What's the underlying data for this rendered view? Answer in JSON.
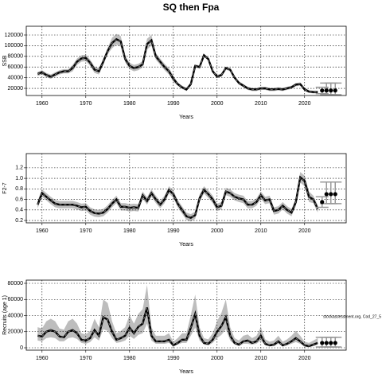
{
  "title": "SQ then Fpa",
  "chart_data": [
    {
      "type": "line",
      "xlabel": "Years",
      "ylabel": "SSB",
      "xlim": [
        1956.4,
        2029.5
      ],
      "xticks": [
        1960,
        1970,
        1980,
        1990,
        2000,
        2010,
        2020
      ],
      "ylim": [
        6600,
        136400
      ],
      "yticks": [
        20000,
        40000,
        60000,
        80000,
        100000,
        120000
      ],
      "grid": true,
      "color": "#000000",
      "band_color": "#bdbdbd",
      "x": [
        1959,
        1960,
        1961,
        1962,
        1963,
        1964,
        1965,
        1966,
        1967,
        1968,
        1969,
        1970,
        1971,
        1972,
        1973,
        1974,
        1975,
        1976,
        1977,
        1978,
        1979,
        1980,
        1981,
        1982,
        1983,
        1984,
        1985,
        1986,
        1987,
        1988,
        1989,
        1990,
        1991,
        1992,
        1993,
        1994,
        1995,
        1996,
        1997,
        1998,
        1999,
        2000,
        2001,
        2002,
        2003,
        2004,
        2005,
        2006,
        2007,
        2008,
        2009,
        2010,
        2011,
        2012,
        2013,
        2014,
        2015,
        2016,
        2017,
        2018,
        2019,
        2020,
        2021,
        2022,
        2023
      ],
      "values": [
        47000,
        50000,
        45000,
        42000,
        46000,
        50000,
        52000,
        52000,
        58000,
        70000,
        76000,
        77000,
        68000,
        55000,
        52000,
        70000,
        90000,
        105000,
        112000,
        108000,
        75000,
        62000,
        58000,
        60000,
        65000,
        103000,
        110000,
        80000,
        70000,
        60000,
        52000,
        38000,
        28000,
        22000,
        18000,
        28000,
        62000,
        60000,
        82000,
        75000,
        52000,
        42000,
        45000,
        58000,
        55000,
        40000,
        30000,
        25000,
        20000,
        18000,
        18000,
        20000,
        20000,
        18000,
        18000,
        19000,
        18000,
        20000,
        22000,
        27000,
        28000,
        18000,
        14000,
        13000,
        13000
      ],
      "low": [
        43000,
        46000,
        41000,
        38000,
        42000,
        46000,
        48000,
        48000,
        52000,
        64000,
        70000,
        71000,
        62000,
        49000,
        46000,
        64000,
        84000,
        95000,
        102000,
        98000,
        69000,
        56000,
        52000,
        54000,
        59000,
        93000,
        100000,
        74000,
        64000,
        54000,
        46000,
        32000,
        25000,
        19000,
        15000,
        25000,
        59000,
        57000,
        79000,
        72000,
        49000,
        39000,
        42000,
        55000,
        52000,
        37000,
        27000,
        22000,
        17000,
        15000,
        15000,
        17000,
        17000,
        15000,
        15000,
        16000,
        15000,
        17000,
        19000,
        24000,
        25000,
        15000,
        11500,
        10500,
        10500
      ],
      "high": [
        51000,
        54000,
        49000,
        46000,
        50000,
        54000,
        56000,
        56000,
        64000,
        76000,
        82000,
        83000,
        74000,
        61000,
        58000,
        76000,
        96000,
        115000,
        122000,
        118000,
        81000,
        68000,
        64000,
        66000,
        71000,
        113000,
        120000,
        86000,
        76000,
        66000,
        58000,
        44000,
        31000,
        25000,
        21000,
        31000,
        65000,
        63000,
        85000,
        78000,
        55000,
        45000,
        48000,
        61000,
        58000,
        43000,
        33000,
        28000,
        23000,
        21000,
        21000,
        23000,
        23000,
        21000,
        21000,
        22000,
        21000,
        23000,
        25000,
        30000,
        31000,
        21000,
        16500,
        15500,
        15500
      ],
      "forecast": {
        "x": [
          2024,
          2025,
          2026,
          2027
        ],
        "values": [
          16000,
          16000,
          16000,
          16000
        ],
        "low": [
          10000,
          8000,
          8000,
          8000
        ],
        "high": [
          22000,
          30000,
          30000,
          30000
        ]
      }
    },
    {
      "type": "line",
      "xlabel": "Years",
      "ylabel": "F2-7",
      "xlim": [
        1956.4,
        2029.5
      ],
      "xticks": [
        1960,
        1970,
        1980,
        1990,
        2000,
        2010,
        2020
      ],
      "ylim": [
        0.155,
        1.47
      ],
      "yticks": [
        0.2,
        0.4,
        0.6,
        0.8,
        {
          "value": 1,
          "label": "1.0"
        },
        1.2
      ],
      "grid": true,
      "color": "#000000",
      "band_color": "#bdbdbd",
      "x": [
        1959,
        1960,
        1961,
        1962,
        1963,
        1964,
        1965,
        1966,
        1967,
        1968,
        1969,
        1970,
        1971,
        1972,
        1973,
        1974,
        1975,
        1976,
        1977,
        1978,
        1979,
        1980,
        1981,
        1982,
        1983,
        1984,
        1985,
        1986,
        1987,
        1988,
        1989,
        1990,
        1991,
        1992,
        1993,
        1994,
        1995,
        1996,
        1997,
        1998,
        1999,
        2000,
        2001,
        2002,
        2003,
        2004,
        2005,
        2006,
        2007,
        2008,
        2009,
        2010,
        2011,
        2012,
        2013,
        2014,
        2015,
        2016,
        2017,
        2018,
        2019,
        2020,
        2021,
        2022,
        2023
      ],
      "values": [
        0.5,
        0.72,
        0.65,
        0.58,
        0.52,
        0.5,
        0.5,
        0.5,
        0.5,
        0.48,
        0.45,
        0.46,
        0.38,
        0.34,
        0.33,
        0.35,
        0.42,
        0.52,
        0.6,
        0.46,
        0.46,
        0.44,
        0.45,
        0.44,
        0.68,
        0.57,
        0.72,
        0.6,
        0.5,
        0.6,
        0.78,
        0.7,
        0.52,
        0.4,
        0.28,
        0.25,
        0.3,
        0.62,
        0.78,
        0.7,
        0.6,
        0.45,
        0.48,
        0.75,
        0.72,
        0.65,
        0.62,
        0.6,
        0.5,
        0.5,
        0.55,
        0.68,
        0.58,
        0.6,
        0.38,
        0.4,
        0.48,
        0.4,
        0.35,
        0.55,
        1.02,
        0.95,
        0.65,
        0.6,
        0.42
      ],
      "low": [
        0.43,
        0.65,
        0.58,
        0.51,
        0.45,
        0.43,
        0.43,
        0.43,
        0.43,
        0.41,
        0.38,
        0.39,
        0.31,
        0.27,
        0.26,
        0.28,
        0.35,
        0.45,
        0.53,
        0.39,
        0.39,
        0.37,
        0.38,
        0.37,
        0.61,
        0.5,
        0.65,
        0.53,
        0.43,
        0.53,
        0.71,
        0.63,
        0.45,
        0.33,
        0.21,
        0.18,
        0.23,
        0.55,
        0.71,
        0.63,
        0.53,
        0.38,
        0.41,
        0.68,
        0.65,
        0.58,
        0.55,
        0.53,
        0.43,
        0.43,
        0.48,
        0.61,
        0.51,
        0.53,
        0.31,
        0.33,
        0.41,
        0.33,
        0.28,
        0.48,
        0.92,
        0.85,
        0.55,
        0.53,
        0.35
      ],
      "high": [
        0.57,
        0.79,
        0.72,
        0.65,
        0.59,
        0.57,
        0.57,
        0.57,
        0.57,
        0.55,
        0.52,
        0.53,
        0.45,
        0.41,
        0.4,
        0.42,
        0.49,
        0.59,
        0.67,
        0.53,
        0.53,
        0.51,
        0.52,
        0.51,
        0.75,
        0.64,
        0.79,
        0.67,
        0.57,
        0.67,
        0.85,
        0.77,
        0.59,
        0.47,
        0.35,
        0.32,
        0.37,
        0.69,
        0.85,
        0.77,
        0.67,
        0.52,
        0.55,
        0.82,
        0.79,
        0.72,
        0.69,
        0.67,
        0.57,
        0.57,
        0.62,
        0.75,
        0.65,
        0.67,
        0.45,
        0.47,
        0.55,
        0.47,
        0.42,
        0.62,
        1.12,
        1.05,
        0.75,
        0.67,
        0.49
      ],
      "forecast": {
        "x": [
          2024,
          2025,
          2026,
          2027
        ],
        "values": [
          0.55,
          0.7,
          0.7,
          0.7
        ],
        "low": [
          0.45,
          0.52,
          0.52,
          0.52
        ],
        "high": [
          0.65,
          0.93,
          0.93,
          0.93
        ]
      }
    },
    {
      "type": "line",
      "xlabel": "Years",
      "ylabel": "Recruits (age 1)",
      "annotation": "stockassessment.org, Cod_27_5",
      "xlim": [
        1956.4,
        2029.5
      ],
      "xticks": [
        1960,
        1970,
        1980,
        1990,
        2000,
        2010,
        2020
      ],
      "ylim": [
        -2960,
        83950
      ],
      "yticks": [
        0,
        20000,
        40000,
        60000,
        80000
      ],
      "grid": true,
      "color": "#000000",
      "band_color": "#bdbdbd",
      "x": [
        1959,
        1960,
        1961,
        1962,
        1963,
        1964,
        1965,
        1966,
        1967,
        1968,
        1969,
        1970,
        1971,
        1972,
        1973,
        1974,
        1975,
        1976,
        1977,
        1978,
        1979,
        1980,
        1981,
        1982,
        1983,
        1984,
        1985,
        1986,
        1987,
        1988,
        1989,
        1990,
        1991,
        1992,
        1993,
        1994,
        1995,
        1996,
        1997,
        1998,
        1999,
        2000,
        2001,
        2002,
        2003,
        2004,
        2005,
        2006,
        2007,
        2008,
        2009,
        2010,
        2011,
        2012,
        2013,
        2014,
        2015,
        2016,
        2017,
        2018,
        2019,
        2020,
        2021,
        2022,
        2023
      ],
      "values": [
        15000,
        14000,
        20000,
        22000,
        20000,
        14000,
        13000,
        20000,
        22000,
        18000,
        10000,
        9000,
        12000,
        22000,
        15000,
        38000,
        35000,
        20000,
        10000,
        12000,
        15000,
        25000,
        18000,
        26000,
        30000,
        50000,
        15000,
        8000,
        8000,
        8000,
        10000,
        3000,
        6000,
        10000,
        10000,
        25000,
        42000,
        15000,
        6000,
        5000,
        10000,
        20000,
        27000,
        38000,
        15000,
        6000,
        4000,
        8000,
        9000,
        6000,
        8000,
        15000,
        5000,
        3000,
        4000,
        8000,
        3000,
        5000,
        8000,
        12000,
        8000,
        3000,
        2000,
        4000,
        6000
      ],
      "low": [
        9000,
        8000,
        12000,
        13000,
        12000,
        8000,
        8000,
        12000,
        13000,
        11000,
        6000,
        5000,
        7000,
        13000,
        9000,
        23000,
        21000,
        12000,
        6000,
        7000,
        9000,
        15000,
        11000,
        16000,
        18000,
        30000,
        9000,
        5000,
        5000,
        5000,
        6000,
        2000,
        4000,
        6000,
        6000,
        15000,
        25000,
        9000,
        4000,
        3000,
        6000,
        12000,
        16000,
        23000,
        9000,
        4000,
        2000,
        5000,
        5000,
        4000,
        5000,
        9000,
        3000,
        2000,
        2000,
        5000,
        2000,
        3000,
        5000,
        7000,
        5000,
        2000,
        1000,
        2000,
        4000
      ],
      "high": [
        25500,
        24000,
        33000,
        36000,
        33000,
        24000,
        22500,
        33000,
        36000,
        30000,
        18000,
        16500,
        21000,
        36000,
        25500,
        60000,
        55500,
        33000,
        18000,
        21000,
        25500,
        40500,
        30000,
        42000,
        48000,
        78000,
        25500,
        15000,
        15000,
        15000,
        18000,
        7500,
        12000,
        18000,
        18000,
        40500,
        66000,
        25500,
        12000,
        10500,
        18000,
        33000,
        43500,
        60000,
        25500,
        12000,
        9000,
        15000,
        16500,
        12000,
        15000,
        25500,
        10500,
        7500,
        9000,
        15000,
        7500,
        10500,
        15000,
        21000,
        15000,
        7500,
        6000,
        9000,
        12000
      ],
      "forecast": {
        "x": [
          2024,
          2025,
          2026,
          2027
        ],
        "values": [
          6000,
          6000,
          6000,
          6000
        ],
        "low": [
          1000,
          1000,
          1000,
          1000
        ],
        "high": [
          13000,
          13000,
          13000,
          13000
        ]
      }
    }
  ]
}
